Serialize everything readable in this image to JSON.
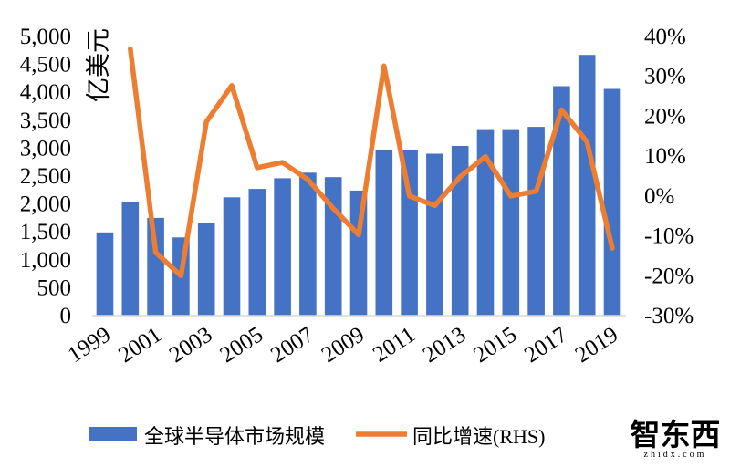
{
  "chart_data": {
    "type": "bar+line combo",
    "title": "",
    "categories": [
      "1999",
      "2000",
      "2001",
      "2002",
      "2003",
      "2004",
      "2005",
      "2006",
      "2007",
      "2008",
      "2009",
      "2010",
      "2011",
      "2012",
      "2013",
      "2014",
      "2015",
      "2016",
      "2017",
      "2018",
      "2019"
    ],
    "series": [
      {
        "name": "全球半导体市场规模",
        "type": "bar",
        "axis": "left",
        "color": "#4472C4",
        "values": [
          1490,
          2040,
          1750,
          1400,
          1660,
          2120,
          2270,
          2460,
          2560,
          2480,
          2240,
          2970,
          2970,
          2900,
          3040,
          3340,
          3340,
          3380,
          4110,
          4670,
          4060
        ]
      },
      {
        "name": "同比增速(RHS)",
        "type": "line",
        "axis": "right",
        "color": "#ED7D31",
        "values": [
          null,
          36.9,
          -14.2,
          -20.0,
          18.6,
          27.7,
          7.1,
          8.4,
          4.1,
          -3.1,
          -9.7,
          32.6,
          0.0,
          -2.4,
          4.8,
          9.9,
          0.0,
          1.2,
          21.6,
          13.6,
          -13.1
        ]
      }
    ],
    "left_axis": {
      "title": "亿美元",
      "min": 0,
      "max": 5000,
      "step": 500,
      "tick_labels": [
        "0",
        "500",
        "1,000",
        "1,500",
        "2,000",
        "2,500",
        "3,000",
        "3,500",
        "4,000",
        "4,500",
        "5,000"
      ]
    },
    "right_axis": {
      "min": -30,
      "max": 40,
      "step": 10,
      "tick_labels": [
        "-30%",
        "-20%",
        "-10%",
        "0%",
        "10%",
        "20%",
        "30%",
        "40%"
      ]
    },
    "x_tick_labels": [
      "1999",
      "2001",
      "2003",
      "2005",
      "2007",
      "2009",
      "2011",
      "2013",
      "2015",
      "2017",
      "2019"
    ],
    "grid": false,
    "legend_position": "bottom"
  },
  "watermark": {
    "line1": "智东西",
    "line2": "zhidx.com"
  }
}
